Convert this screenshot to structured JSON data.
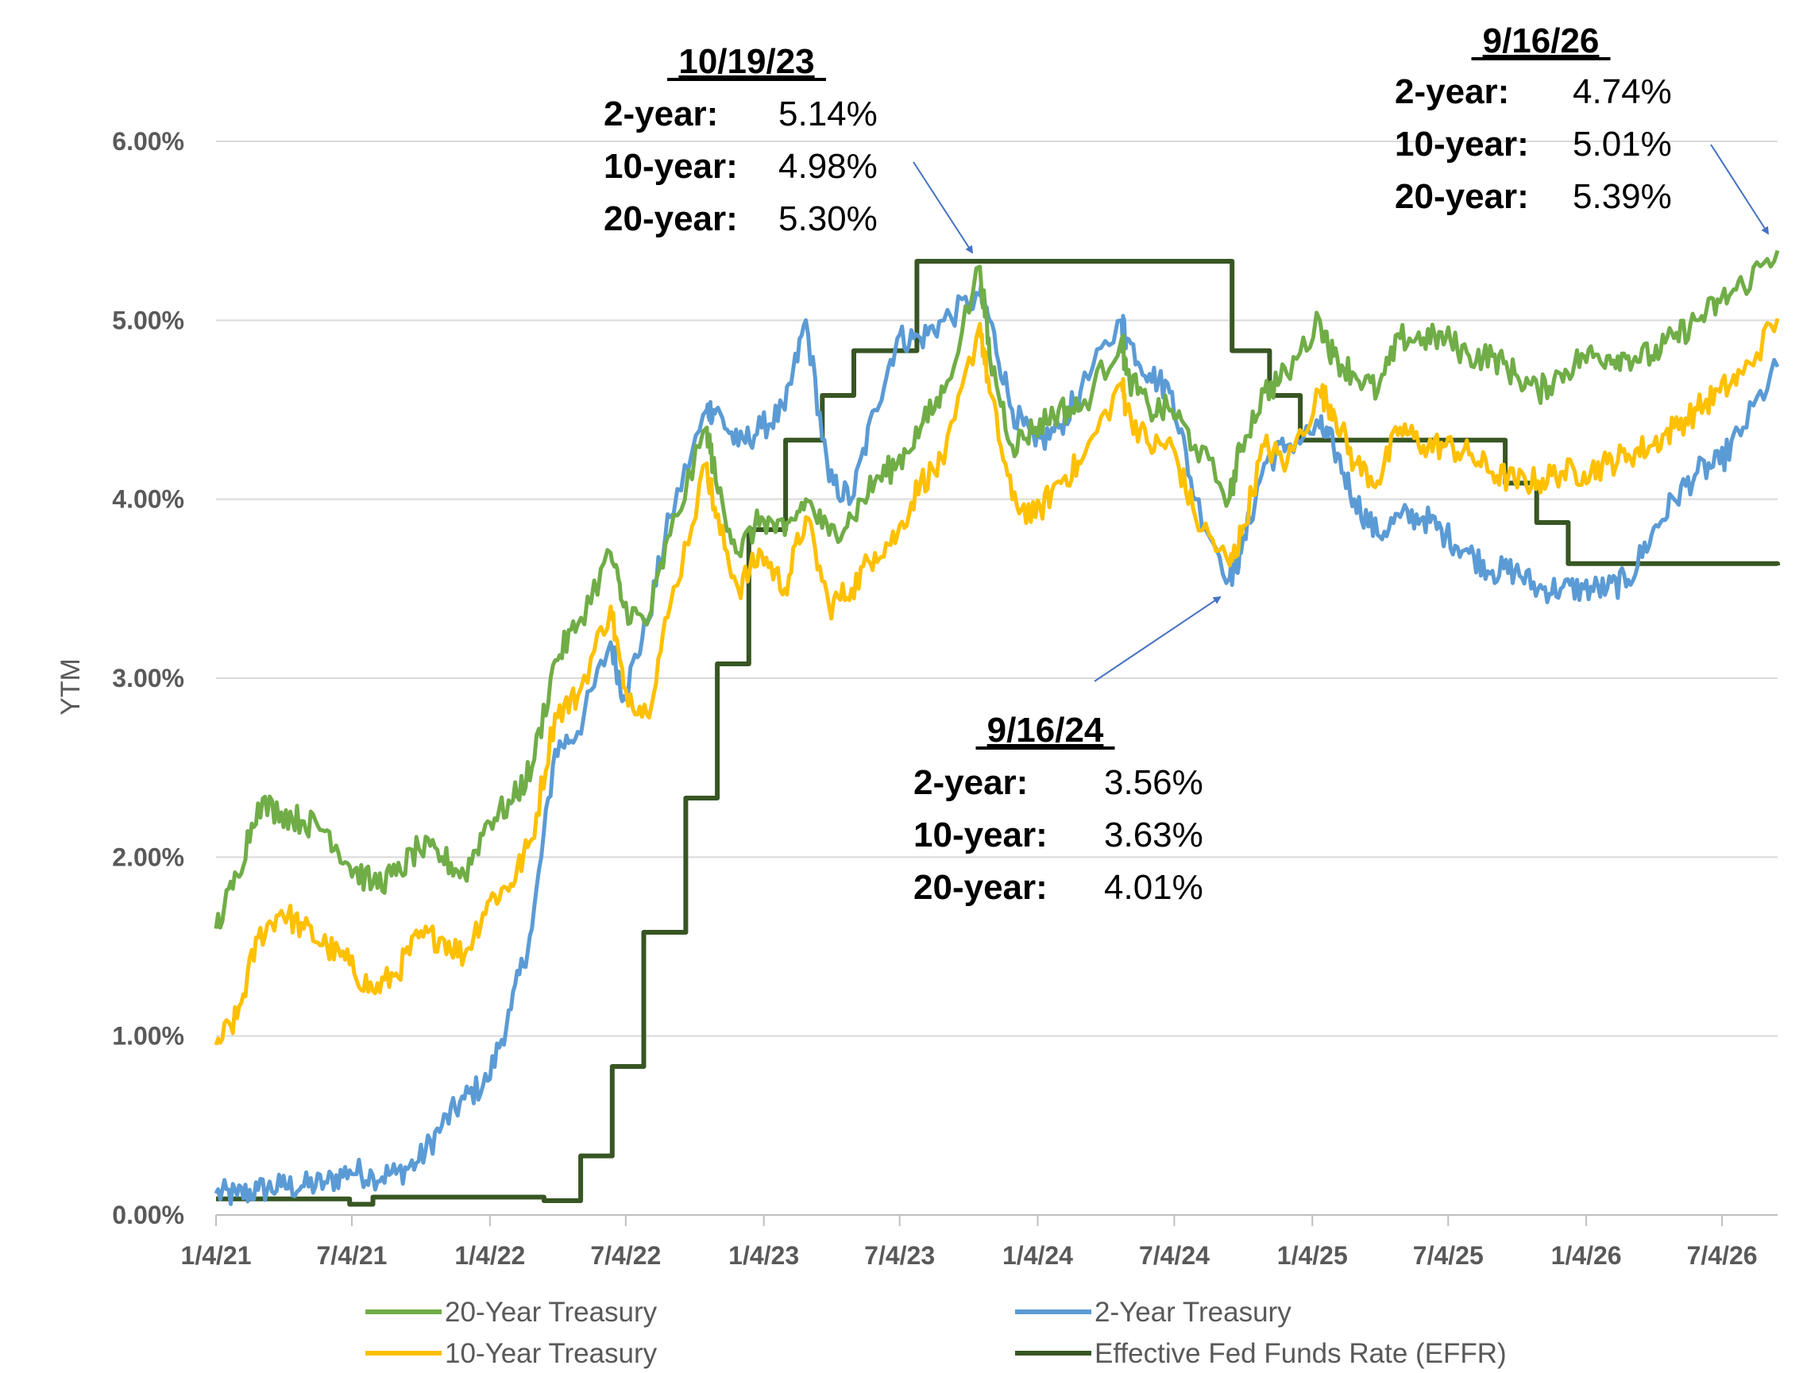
{
  "chart_data": {
    "type": "line",
    "ylabel": "YTM",
    "ylim": [
      0,
      6
    ],
    "y_ticks": [
      "0.00%",
      "1.00%",
      "2.00%",
      "3.00%",
      "4.00%",
      "5.00%",
      "6.00%"
    ],
    "x_ticks": [
      "1/4/21",
      "7/4/21",
      "1/4/22",
      "7/4/22",
      "1/4/23",
      "7/4/23",
      "1/4/24",
      "7/4/24",
      "1/4/25",
      "7/4/25",
      "1/4/26",
      "7/4/26"
    ],
    "x_range": [
      "1/4/21",
      "9/16/26"
    ],
    "grid": "horizontal",
    "legend_position": "bottom",
    "series": [
      {
        "name": "20-Year Treasury",
        "color": "#70ad47",
        "dates": [
          "1/4/21",
          "2/1/21",
          "3/1/21",
          "4/1/21",
          "5/1/21",
          "6/1/21",
          "7/1/21",
          "8/1/21",
          "9/1/21",
          "10/1/21",
          "11/1/21",
          "12/1/21",
          "1/1/22",
          "2/1/22",
          "3/1/22",
          "4/1/22",
          "5/1/22",
          "6/14/22",
          "7/1/22",
          "8/1/22",
          "9/1/22",
          "10/20/22",
          "11/1/22",
          "12/1/22",
          "1/1/23",
          "2/1/23",
          "3/1/23",
          "4/1/23",
          "5/1/23",
          "6/1/23",
          "7/1/23",
          "8/1/23",
          "9/1/23",
          "10/19/23",
          "11/1/23",
          "12/1/23",
          "1/1/24",
          "2/1/24",
          "3/1/24",
          "4/25/24",
          "5/1/24",
          "6/1/24",
          "7/1/24",
          "8/1/24",
          "9/16/24",
          "10/1/24",
          "11/1/24",
          "12/1/24",
          "1/14/25",
          "2/1/25",
          "3/1/25",
          "4/1/25",
          "5/1/25",
          "6/1/25",
          "7/1/25",
          "8/1/25",
          "9/1/25",
          "10/1/25",
          "11/1/25",
          "12/1/25",
          "1/1/26",
          "2/1/26",
          "3/1/26",
          "4/1/26",
          "5/1/26",
          "6/1/26",
          "7/1/26",
          "8/1/26",
          "9/16/26"
        ],
        "values": [
          1.6,
          1.9,
          2.3,
          2.25,
          2.2,
          2.15,
          1.95,
          1.85,
          1.9,
          2.05,
          2.0,
          1.9,
          2.2,
          2.3,
          2.5,
          3.1,
          3.3,
          3.7,
          3.4,
          3.3,
          3.8,
          4.4,
          4.1,
          3.7,
          3.9,
          3.8,
          4.0,
          3.8,
          3.9,
          4.1,
          4.2,
          4.4,
          4.6,
          5.3,
          4.8,
          4.3,
          4.4,
          4.5,
          4.5,
          4.9,
          4.7,
          4.5,
          4.5,
          4.3,
          4.01,
          4.3,
          4.6,
          4.7,
          5.0,
          4.8,
          4.7,
          4.6,
          4.9,
          4.9,
          4.9,
          4.8,
          4.8,
          4.7,
          4.6,
          4.7,
          4.8,
          4.8,
          4.8,
          4.8,
          4.9,
          5.0,
          5.1,
          5.2,
          5.39
        ]
      },
      {
        "name": "2-Year Treasury",
        "color": "#5b9bd5",
        "dates": [
          "1/4/21",
          "2/1/21",
          "3/1/21",
          "4/1/21",
          "5/1/21",
          "6/1/21",
          "7/1/21",
          "8/1/21",
          "9/1/21",
          "10/1/21",
          "11/1/21",
          "12/1/21",
          "1/1/22",
          "2/1/22",
          "3/1/22",
          "4/1/22",
          "5/1/22",
          "6/14/22",
          "7/1/22",
          "8/1/22",
          "9/1/22",
          "10/20/22",
          "11/1/22",
          "12/1/22",
          "1/1/23",
          "2/1/23",
          "3/1/23",
          "4/1/23",
          "5/1/23",
          "6/1/23",
          "7/1/23",
          "8/1/23",
          "9/1/23",
          "10/19/23",
          "11/1/23",
          "12/1/23",
          "1/1/24",
          "2/1/24",
          "3/1/24",
          "4/25/24",
          "5/1/24",
          "6/1/24",
          "7/1/24",
          "8/1/24",
          "9/16/24",
          "10/1/24",
          "11/1/24",
          "12/1/24",
          "1/14/25",
          "2/1/25",
          "3/1/25",
          "4/1/25",
          "5/1/25",
          "6/1/25",
          "7/1/25",
          "8/1/25",
          "9/1/25",
          "10/1/25",
          "11/1/25",
          "12/1/25",
          "1/1/26",
          "2/1/26",
          "3/1/26",
          "4/1/26",
          "5/1/26",
          "6/1/26",
          "7/1/26",
          "8/1/26",
          "9/16/26"
        ],
        "values": [
          0.12,
          0.11,
          0.14,
          0.16,
          0.16,
          0.18,
          0.25,
          0.22,
          0.23,
          0.3,
          0.5,
          0.65,
          0.75,
          1.15,
          1.6,
          2.6,
          2.7,
          3.2,
          2.9,
          3.3,
          3.9,
          4.5,
          4.5,
          4.3,
          4.4,
          4.5,
          5.0,
          4.1,
          4.0,
          4.5,
          4.9,
          4.9,
          5.0,
          5.14,
          5.0,
          4.5,
          4.3,
          4.4,
          4.6,
          5.0,
          4.9,
          4.7,
          4.6,
          4.0,
          3.56,
          3.7,
          4.2,
          4.3,
          4.4,
          4.3,
          4.0,
          3.8,
          3.9,
          3.9,
          3.8,
          3.7,
          3.6,
          3.6,
          3.5,
          3.5,
          3.5,
          3.5,
          3.55,
          3.8,
          4.0,
          4.15,
          4.2,
          4.4,
          4.74
        ]
      },
      {
        "name": "10-Year Treasury",
        "color": "#ffc000",
        "dates": [
          "1/4/21",
          "2/1/21",
          "3/1/21",
          "4/1/21",
          "5/1/21",
          "6/1/21",
          "7/1/21",
          "8/1/21",
          "9/1/21",
          "10/1/21",
          "11/1/21",
          "12/1/21",
          "1/1/22",
          "2/1/22",
          "3/1/22",
          "4/1/22",
          "5/1/22",
          "6/14/22",
          "7/1/22",
          "8/1/22",
          "9/1/22",
          "10/20/22",
          "11/1/22",
          "12/1/22",
          "1/1/23",
          "2/1/23",
          "3/1/23",
          "4/1/23",
          "5/1/23",
          "6/1/23",
          "7/1/23",
          "8/1/23",
          "9/1/23",
          "10/19/23",
          "11/1/23",
          "12/1/23",
          "1/1/24",
          "2/1/24",
          "3/1/24",
          "4/25/24",
          "5/1/24",
          "6/1/24",
          "7/1/24",
          "8/1/24",
          "9/16/24",
          "10/1/24",
          "11/1/24",
          "12/1/24",
          "1/14/25",
          "2/1/25",
          "3/1/25",
          "4/1/25",
          "5/1/25",
          "6/1/25",
          "7/1/25",
          "8/1/25",
          "9/1/25",
          "10/1/25",
          "11/1/25",
          "12/1/25",
          "1/1/26",
          "2/1/26",
          "3/1/26",
          "4/1/26",
          "5/1/26",
          "6/1/26",
          "7/1/26",
          "8/1/26",
          "9/16/26"
        ],
        "values": [
          0.95,
          1.1,
          1.55,
          1.7,
          1.6,
          1.5,
          1.4,
          1.25,
          1.35,
          1.55,
          1.55,
          1.45,
          1.75,
          1.85,
          2.1,
          2.8,
          2.9,
          3.4,
          2.95,
          2.8,
          3.4,
          4.2,
          3.9,
          3.5,
          3.7,
          3.5,
          3.9,
          3.4,
          3.5,
          3.7,
          3.8,
          4.1,
          4.2,
          4.98,
          4.6,
          4.0,
          3.9,
          4.1,
          4.2,
          4.65,
          4.5,
          4.3,
          4.3,
          3.9,
          3.63,
          3.8,
          4.3,
          4.2,
          4.6,
          4.5,
          4.2,
          4.1,
          4.4,
          4.3,
          4.3,
          4.25,
          4.15,
          4.1,
          4.1,
          4.15,
          4.15,
          4.2,
          4.25,
          4.3,
          4.4,
          4.5,
          4.6,
          4.7,
          5.01
        ]
      },
      {
        "name": "Effective Fed Funds Rate (EFFR)",
        "color": "#375623",
        "dates": [
          "1/4/21",
          "7/1/21",
          "8/1/21",
          "3/17/22",
          "5/5/22",
          "6/16/22",
          "7/28/22",
          "9/22/22",
          "11/3/22",
          "12/15/22",
          "2/2/23",
          "3/23/23",
          "5/4/23",
          "7/27/23",
          "9/19/24",
          "11/8/24",
          "12/19/24",
          "9/18/25",
          "10/30/25",
          "12/11/25",
          "9/16/26"
        ],
        "values": [
          0.09,
          0.06,
          0.1,
          0.08,
          0.33,
          0.83,
          1.58,
          2.33,
          3.08,
          3.83,
          4.33,
          4.58,
          4.83,
          5.33,
          4.83,
          4.58,
          4.33,
          4.09,
          3.87,
          3.64,
          3.63
        ]
      }
    ],
    "annotations": [
      {
        "title": "10/19/23",
        "rows": [
          {
            "label": "2-year:",
            "value": "5.14%"
          },
          {
            "label": "10-year:",
            "value": "4.98%"
          },
          {
            "label": "20-year:",
            "value": "5.30%"
          }
        ],
        "point_date": "10/19/23",
        "point_value": 5.3
      },
      {
        "title": "9/16/24",
        "rows": [
          {
            "label": "2-year:",
            "value": "3.56%"
          },
          {
            "label": "10-year:",
            "value": "3.63%"
          },
          {
            "label": "20-year:",
            "value": "4.01%"
          }
        ],
        "point_date": "9/16/24",
        "point_value": 3.56
      },
      {
        "title": "9/16/26",
        "rows": [
          {
            "label": "2-year:",
            "value": "4.74%"
          },
          {
            "label": "10-year:",
            "value": "5.01%"
          },
          {
            "label": "20-year:",
            "value": "5.39%"
          }
        ],
        "point_date": "9/16/26",
        "point_value": 5.39
      }
    ],
    "annotation_arrow_color": "#4472c4",
    "grid_color": "#d9d9d9",
    "axis_color": "#bfbfbf"
  }
}
